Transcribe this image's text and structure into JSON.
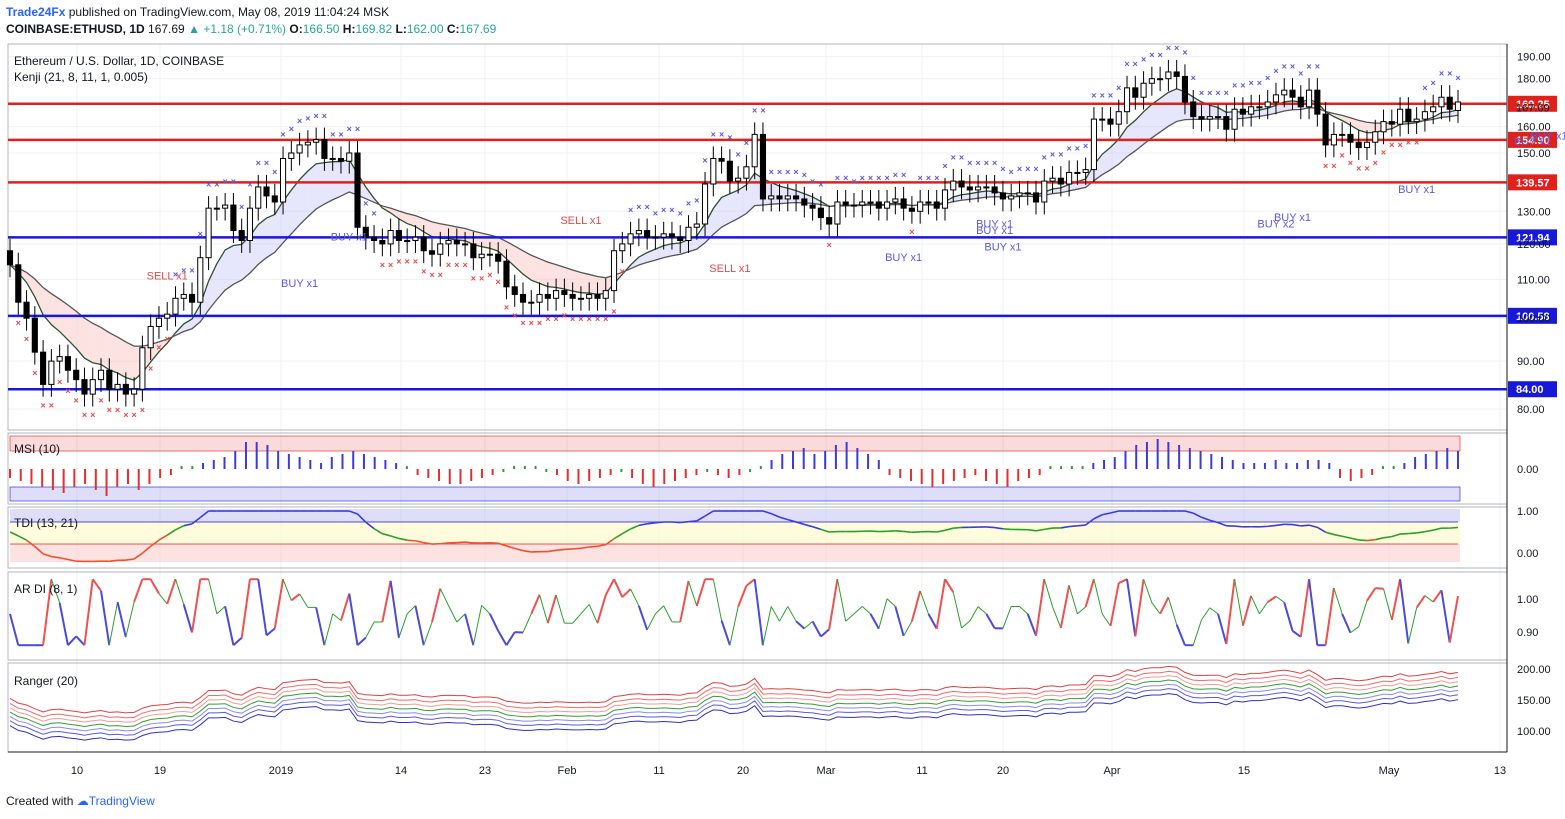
{
  "header": {
    "publisher": "Trade24Fx",
    "published_text": "published on TradingView.com, May 08, 2019 11:04:24 MSK",
    "symbol": "COINBASE:ETHUSD, 1D",
    "last": "167.69",
    "change": "+1.18 (+0.71%)",
    "open_label": "O:",
    "open": "166.50",
    "high_label": "H:",
    "high": "169.82",
    "low_label": "L:",
    "low": "162.00",
    "close_label": "C:",
    "close": "167.69"
  },
  "legend": {
    "title": "Ethereum / U.S. Dollar, 1D, COINBASE",
    "indicator": "Kenji (21, 8, 11, 1, 0.005)"
  },
  "footer": {
    "created_with": "Created with",
    "brand": "TradingView"
  },
  "colors": {
    "up_candle": "#ffffff",
    "down_candle": "#000000",
    "red_line": "#e0201b",
    "blue_line": "#1818d8",
    "buy": "#5a5ad8",
    "sell": "#e24a4a",
    "green": "#2aa02a"
  },
  "chart_data": [
    {
      "type": "candlestick",
      "title": "Ethereum / U.S. Dollar, 1D, COINBASE",
      "x_ticks": [
        "10",
        "19",
        "2019",
        "14",
        "23",
        "Feb",
        "11",
        "20",
        "Mar",
        "11",
        "20",
        "Apr",
        "15",
        "May",
        "13"
      ],
      "y_ticks": [
        80,
        90,
        100,
        110,
        120,
        130,
        150,
        160,
        180,
        190
      ],
      "y_log": true,
      "ylim": [
        76,
        196
      ],
      "horizontal_levels": [
        {
          "value": 169.25,
          "color": "red",
          "label": "169.25"
        },
        {
          "value": 154.9,
          "color": "red",
          "label": "154.90"
        },
        {
          "value": 139.57,
          "color": "red",
          "label": "139.57"
        },
        {
          "value": 121.94,
          "color": "blue",
          "label": "121.94"
        },
        {
          "value": 100.58,
          "color": "blue",
          "label": "100.58"
        },
        {
          "value": 84.0,
          "color": "blue",
          "label": "84.00"
        }
      ],
      "last_price_label": "167.69",
      "annotations": [
        {
          "text": "SELL x1",
          "day": 19,
          "price": 110
        },
        {
          "text": "BUY x1",
          "day": 35,
          "price": 108
        },
        {
          "text": "BUY x1",
          "day": 41,
          "price": 121
        },
        {
          "text": "SELL x1",
          "day": 69,
          "price": 126
        },
        {
          "text": "SELL x1",
          "day": 87,
          "price": 112
        },
        {
          "text": "BUY x1",
          "day": 108,
          "price": 115
        },
        {
          "text": "BUY x1",
          "day": 119,
          "price": 123
        },
        {
          "text": "BUY x1",
          "day": 119,
          "price": 125
        },
        {
          "text": "BUY x1",
          "day": 120,
          "price": 118
        },
        {
          "text": "BUY x2",
          "day": 153,
          "price": 125
        },
        {
          "text": "BUY x1",
          "day": 155,
          "price": 127
        },
        {
          "text": "BUY x1",
          "day": 170,
          "price": 136
        },
        {
          "text": "BUY x1",
          "day": 184,
          "price": 153
        },
        {
          "text": "BUY x1",
          "day": 186,
          "price": 155
        },
        {
          "text": "SELL x1",
          "day": 211,
          "price": 170
        }
      ],
      "candles_close": [
        114,
        104,
        100,
        92,
        85,
        90,
        91,
        88,
        86,
        83,
        86,
        88,
        84,
        85,
        83,
        84,
        93,
        98,
        100,
        101,
        105,
        106,
        104,
        116,
        131,
        131,
        132,
        124,
        121,
        131,
        138,
        135,
        133,
        148,
        150,
        153,
        154,
        155,
        148,
        148,
        147,
        150,
        125,
        122,
        121,
        120,
        124,
        121,
        121,
        122,
        118,
        117,
        120,
        121,
        120,
        120,
        116,
        117,
        117,
        115,
        108,
        106,
        104,
        104,
        106,
        105,
        107,
        106,
        105,
        105,
        106,
        105,
        107,
        118,
        120,
        123,
        124,
        122,
        122,
        123,
        122,
        121,
        125,
        126,
        139,
        148,
        147,
        140,
        141,
        145,
        157,
        134,
        135,
        134,
        135,
        134,
        132,
        131,
        128,
        126,
        133,
        132,
        132,
        133,
        133,
        131,
        133,
        134,
        131,
        130,
        133,
        133,
        131,
        137,
        140,
        138,
        137,
        138,
        138,
        136,
        134,
        135,
        136,
        136,
        133,
        140,
        141,
        139,
        143,
        143,
        144,
        163,
        163,
        161,
        166,
        176,
        172,
        178,
        180,
        180,
        183,
        181,
        170,
        164,
        163,
        164,
        164,
        159,
        167,
        165,
        168,
        168,
        170,
        173,
        175,
        172,
        168,
        175,
        165,
        153,
        157,
        157,
        154,
        152,
        154,
        158,
        162,
        161,
        167,
        162,
        163,
        166,
        168,
        172,
        167,
        170
      ],
      "candles_open": [
        118,
        114,
        104,
        100,
        92,
        85,
        90,
        91,
        88,
        86,
        83,
        86,
        88,
        84,
        85,
        83,
        84,
        93,
        98,
        100,
        101,
        105,
        106,
        104,
        116,
        131,
        131,
        132,
        124,
        121,
        131,
        138,
        135,
        133,
        148,
        150,
        153,
        154,
        155,
        148,
        148,
        147,
        150,
        125,
        122,
        121,
        120,
        124,
        121,
        121,
        122,
        118,
        117,
        120,
        121,
        120,
        120,
        116,
        117,
        117,
        115,
        108,
        106,
        104,
        104,
        106,
        105,
        107,
        106,
        105,
        105,
        106,
        105,
        107,
        118,
        120,
        123,
        124,
        122,
        122,
        123,
        122,
        121,
        125,
        126,
        139,
        148,
        147,
        140,
        141,
        145,
        157,
        134,
        135,
        134,
        135,
        134,
        132,
        131,
        128,
        126,
        133,
        132,
        132,
        133,
        133,
        131,
        133,
        134,
        131,
        130,
        133,
        133,
        131,
        137,
        140,
        138,
        137,
        138,
        138,
        136,
        134,
        135,
        136,
        136,
        133,
        140,
        141,
        139,
        143,
        143,
        144,
        163,
        163,
        161,
        166,
        176,
        172,
        178,
        180,
        180,
        183,
        181,
        170,
        164,
        163,
        164,
        164,
        159,
        167,
        165,
        168,
        168,
        170,
        173,
        175,
        172,
        168,
        175,
        165,
        153,
        157,
        157,
        154,
        152,
        154,
        158,
        162,
        161,
        167,
        162,
        163,
        166,
        168,
        172,
        166.5
      ]
    },
    {
      "type": "bar",
      "title": "MSI (10)",
      "y_ticks": [
        0.0
      ],
      "values": [
        -0.3,
        -0.4,
        -0.5,
        -0.6,
        -0.7,
        -0.8,
        -0.6,
        -0.5,
        -0.7,
        -0.9,
        -0.6,
        -0.5,
        -0.7,
        -0.5,
        -0.3,
        -0.2,
        0.1,
        0.1,
        0.2,
        0.3,
        0.4,
        0.6,
        0.9,
        0.9,
        0.8,
        0.6,
        0.5,
        0.4,
        0.3,
        0.2,
        0.4,
        0.5,
        0.6,
        0.5,
        0.4,
        0.3,
        0.2,
        0.1,
        -0.2,
        -0.3,
        -0.4,
        -0.5,
        -0.5,
        -0.4,
        -0.3,
        -0.2,
        -0.1,
        0.1,
        0.1,
        0.1,
        -0.1,
        -0.2,
        -0.4,
        -0.5,
        -0.4,
        -0.3,
        -0.2,
        -0.1,
        -0.3,
        -0.5,
        -0.6,
        -0.5,
        -0.4,
        -0.3,
        -0.2,
        -0.1,
        -0.2,
        -0.3,
        -0.2,
        -0.1,
        0.1,
        0.3,
        0.5,
        0.6,
        0.7,
        0.5,
        0.6,
        0.8,
        0.9,
        0.7,
        0.5,
        0.3,
        -0.2,
        -0.3,
        -0.4,
        -0.5,
        -0.6,
        -0.5,
        -0.4,
        -0.3,
        -0.2,
        -0.4,
        -0.5,
        -0.6,
        -0.4,
        -0.3,
        -0.2,
        0.1,
        0.1,
        0.1,
        0.1,
        0.2,
        0.3,
        0.4,
        0.6,
        0.8,
        0.9,
        1.0,
        0.9,
        0.8,
        0.7,
        0.6,
        0.5,
        0.4,
        0.3,
        0.2,
        0.2,
        0.2,
        0.3,
        0.2,
        0.2,
        0.3,
        0.3,
        0.2,
        -0.3,
        -0.4,
        -0.3,
        -0.2,
        0.1,
        0.1,
        0.2,
        0.4,
        0.5,
        0.6,
        0.7,
        0.6
      ]
    },
    {
      "type": "line",
      "title": "TDI (13, 21)",
      "y_ticks": [
        0.0,
        1.0
      ]
    },
    {
      "type": "line",
      "title": "AR DI (8, 1)",
      "y_ticks": [
        0.9,
        1.0
      ]
    },
    {
      "type": "line",
      "title": "Ranger (20)",
      "y_ticks": [
        100.0,
        150.0,
        200.0
      ]
    }
  ]
}
